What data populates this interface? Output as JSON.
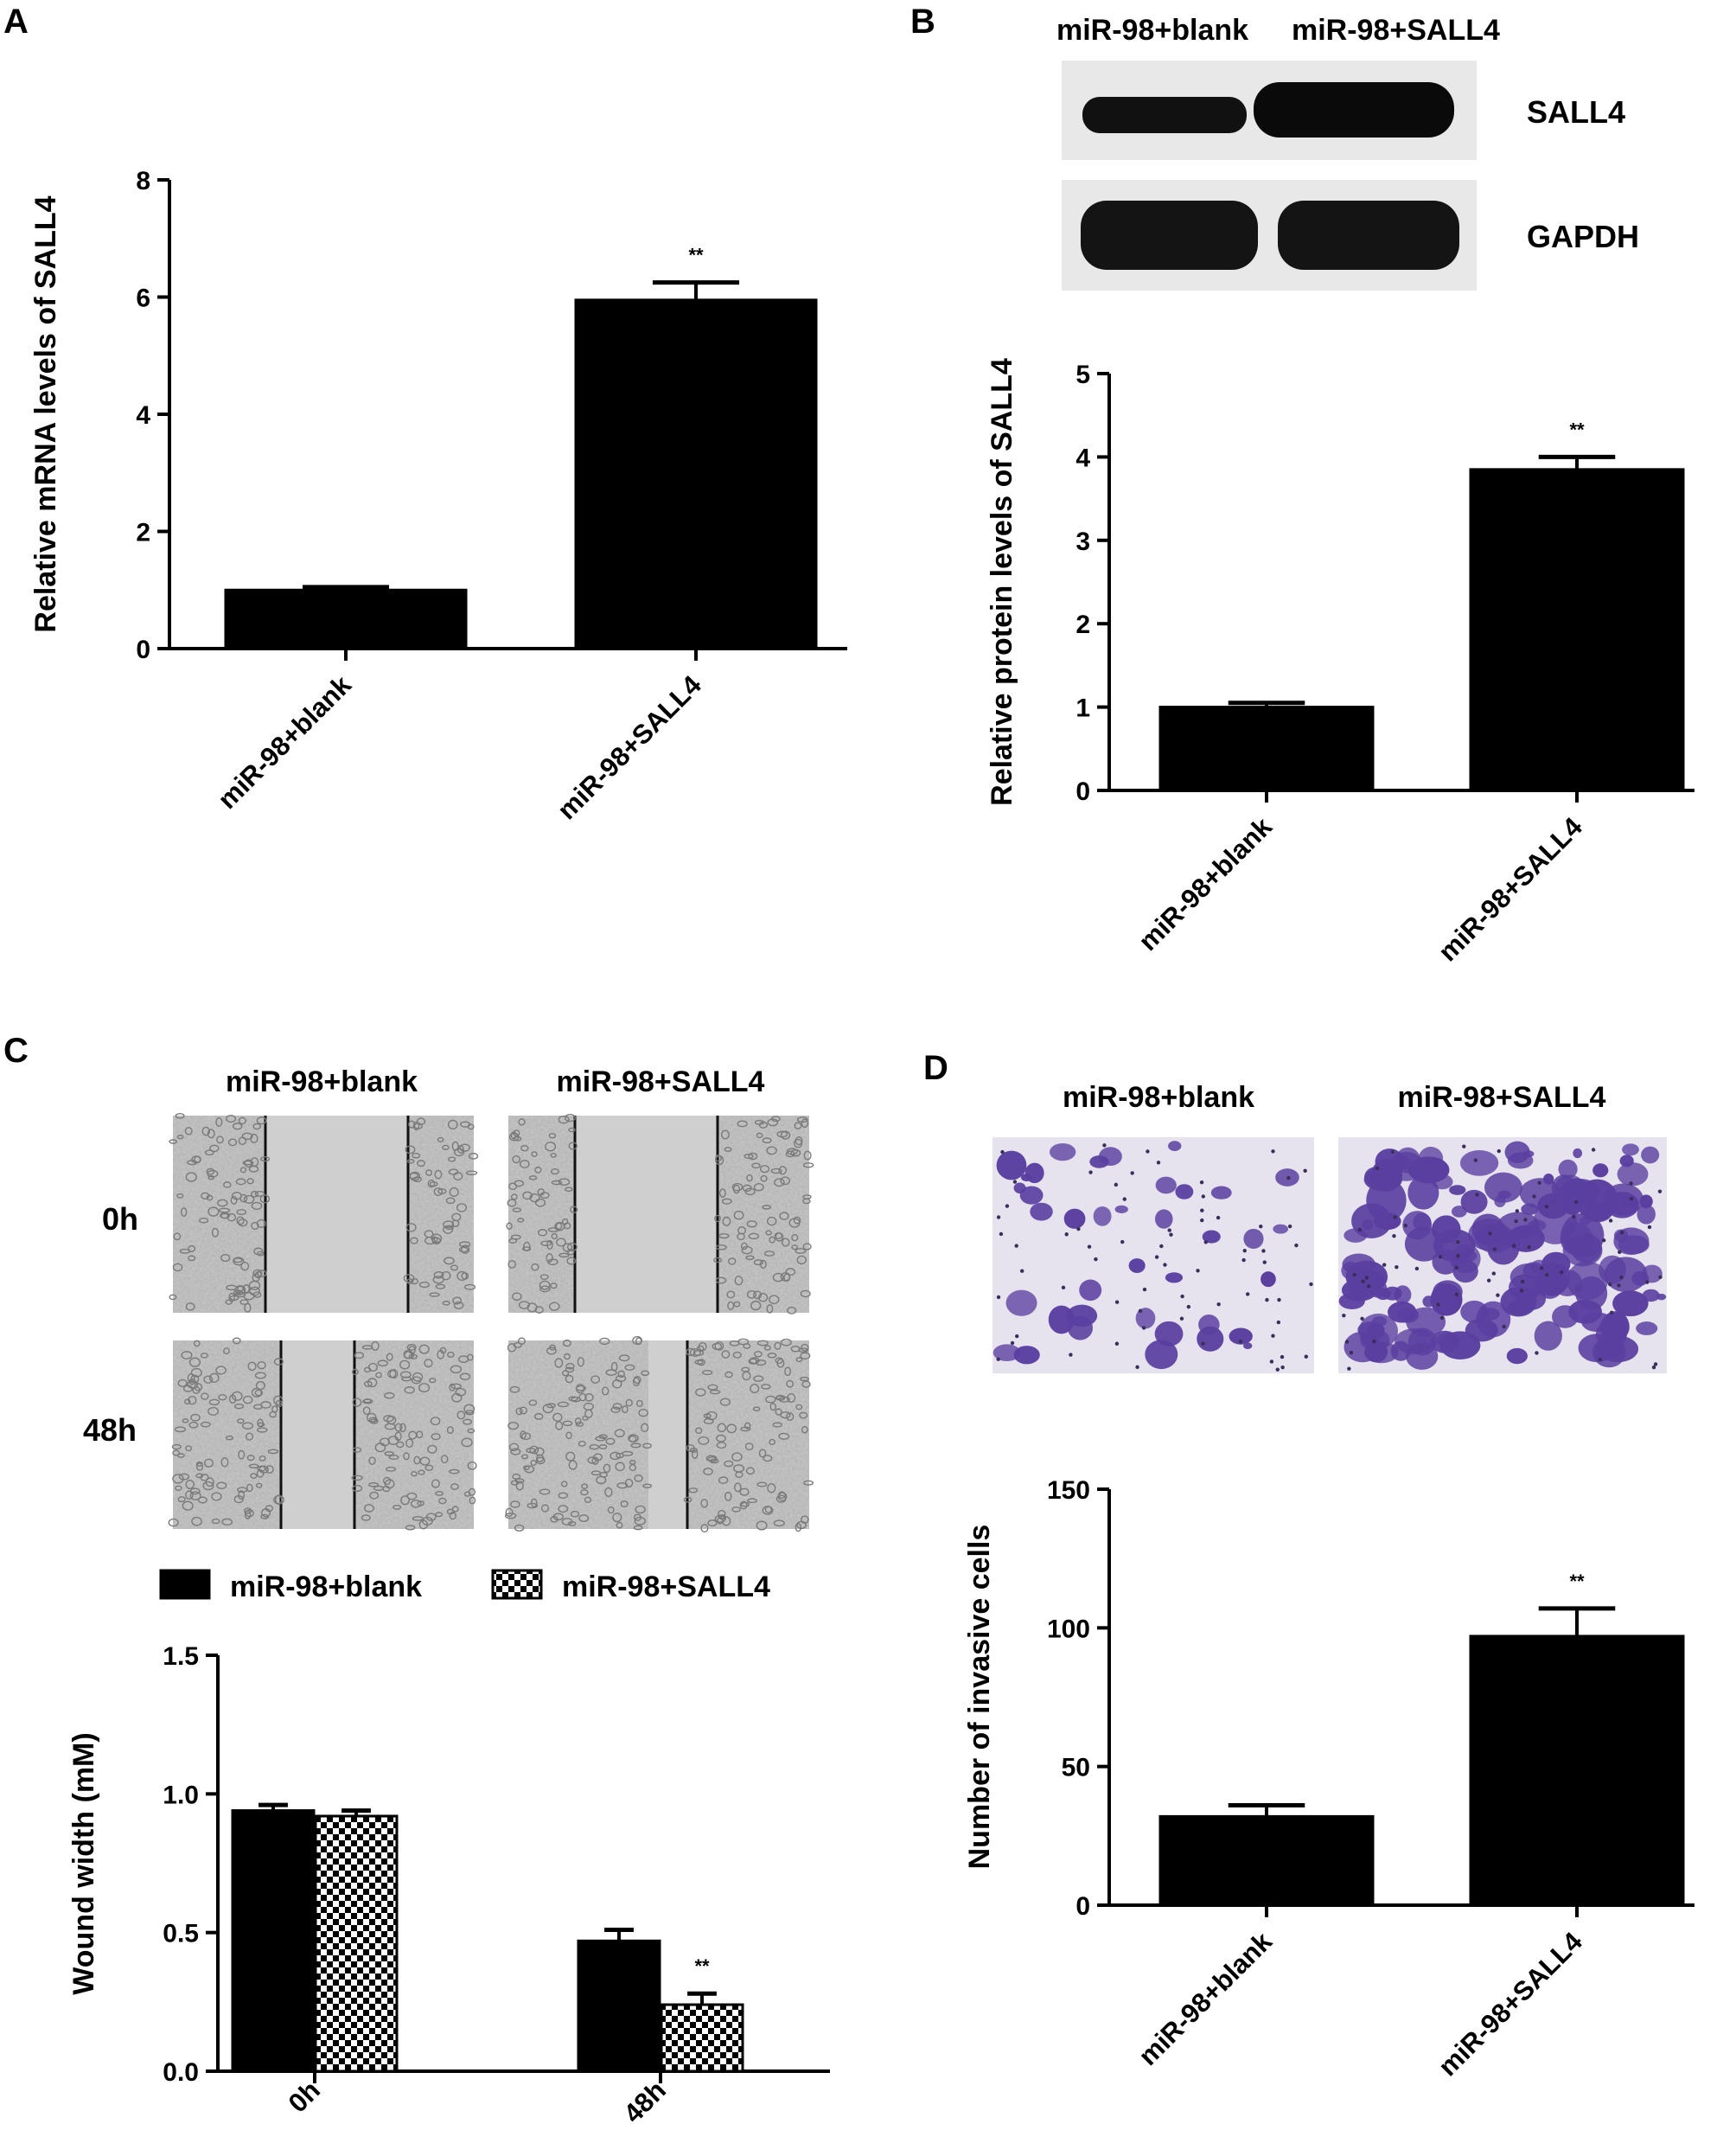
{
  "panels": {
    "A": "A",
    "B": "B",
    "C": "C",
    "D": "D"
  },
  "blot": {
    "lane_labels": [
      "miR-98+blank",
      "miR-98+SALL4"
    ],
    "band_labels": [
      "SALL4",
      "GAPDH"
    ]
  },
  "scratch": {
    "col_labels": [
      "miR-98+blank",
      "miR-98+SALL4"
    ],
    "row_labels": [
      "0h",
      "48h"
    ]
  },
  "transwell": {
    "col_labels": [
      "miR-98+blank",
      "miR-98+SALL4"
    ]
  },
  "colors": {
    "bar": "#000000",
    "cell_stain": "#5a3fa0",
    "micro_bg": "#c8c8c8"
  },
  "chart_data": [
    {
      "panel": "A",
      "type": "bar",
      "categories": [
        "miR-98+blank",
        "miR-98+SALL4"
      ],
      "values": [
        1.0,
        5.95
      ],
      "errors": [
        0.05,
        0.3
      ],
      "significance": [
        "",
        "**"
      ],
      "ylabel": "Relative mRNA levels of SALL4",
      "ylim": [
        0,
        8
      ],
      "yticks": [
        "0",
        "2",
        "4",
        "6",
        "8"
      ]
    },
    {
      "panel": "B",
      "type": "bar",
      "categories": [
        "miR-98+blank",
        "miR-98+SALL4"
      ],
      "values": [
        1.0,
        3.85
      ],
      "errors": [
        0.05,
        0.15
      ],
      "significance": [
        "",
        "**"
      ],
      "ylabel": "Relative protein levels of SALL4",
      "ylim": [
        0,
        5
      ],
      "yticks": [
        "0",
        "1",
        "2",
        "3",
        "4",
        "5"
      ]
    },
    {
      "panel": "C",
      "type": "bar",
      "categories": [
        "0h",
        "48h"
      ],
      "series": [
        {
          "name": "miR-98+blank",
          "values": [
            0.94,
            0.47
          ],
          "errors": [
            0.02,
            0.04
          ],
          "significance": [
            "",
            ""
          ]
        },
        {
          "name": "miR-98+SALL4",
          "values": [
            0.92,
            0.24
          ],
          "errors": [
            0.02,
            0.04
          ],
          "significance": [
            "",
            "**"
          ]
        }
      ],
      "ylabel": "Wound width (mM)",
      "ylim": [
        0,
        1.5
      ],
      "yticks": [
        "0.0",
        "0.5",
        "1.0",
        "1.5"
      ],
      "legend": "top"
    },
    {
      "panel": "D",
      "type": "bar",
      "categories": [
        "miR-98+blank",
        "miR-98+SALL4"
      ],
      "values": [
        32,
        97
      ],
      "errors": [
        4,
        10
      ],
      "significance": [
        "",
        "**"
      ],
      "ylabel": "Number of invasive cells",
      "ylim": [
        0,
        150
      ],
      "yticks": [
        "0",
        "50",
        "100",
        "150"
      ]
    }
  ]
}
